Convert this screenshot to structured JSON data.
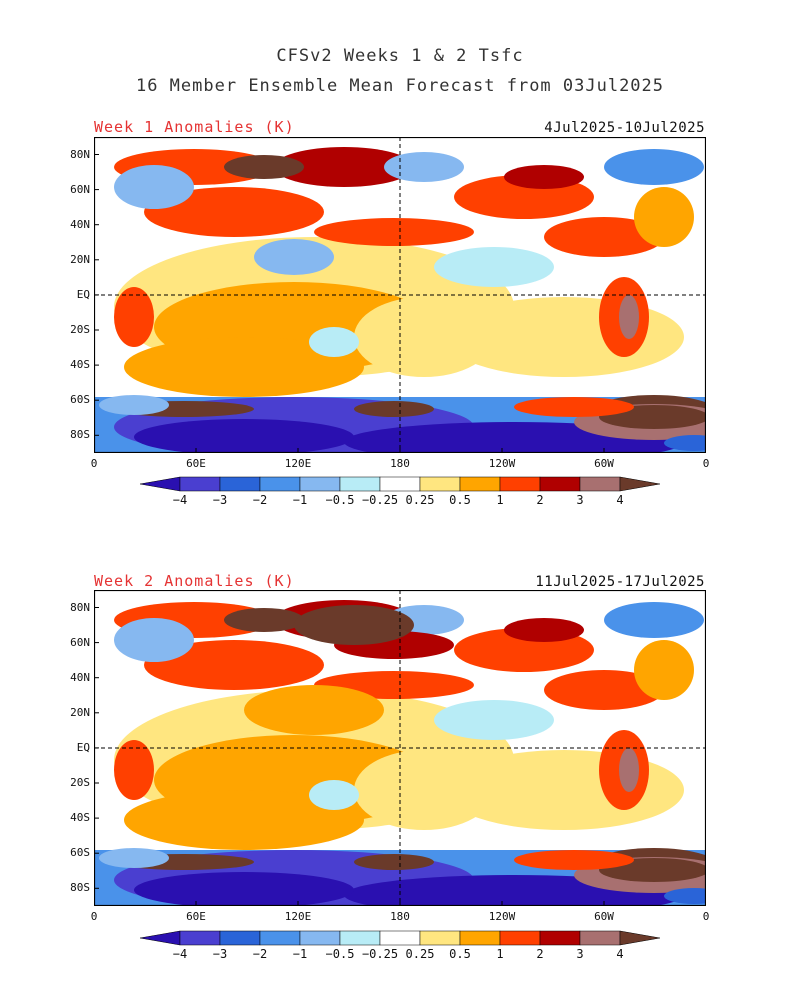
{
  "header": {
    "line1": "CFSv2 Weeks 1 & 2 Tsfc",
    "line2": "16 Member Ensemble Mean Forecast from 03Jul2025"
  },
  "panels": [
    {
      "title": "Week 1 Anomalies (K)",
      "dates": "4Jul2025-10Jul2025"
    },
    {
      "title": "Week 2 Anomalies (K)",
      "dates": "11Jul2025-17Jul2025"
    }
  ],
  "axes": {
    "lat_labels": [
      "80N",
      "60N",
      "40N",
      "20N",
      "EQ",
      "20S",
      "40S",
      "60S",
      "80S"
    ],
    "lon_labels": [
      "0",
      "60E",
      "120E",
      "180",
      "120W",
      "60W",
      "0"
    ]
  },
  "colorbar": {
    "labels": [
      "-4",
      "-3",
      "-2",
      "-1",
      "-0.5",
      "-0.25",
      "0.25",
      "0.5",
      "1",
      "2",
      "3",
      "4"
    ],
    "colors": [
      "#2a10b0",
      "#4a3fd0",
      "#2a64d8",
      "#4a92ea",
      "#86b8f0",
      "#b8ecf6",
      "#ffffff",
      "#ffe680",
      "#ffa500",
      "#ff4000",
      "#b00000",
      "#a87070",
      "#6a3a2a"
    ]
  }
}
